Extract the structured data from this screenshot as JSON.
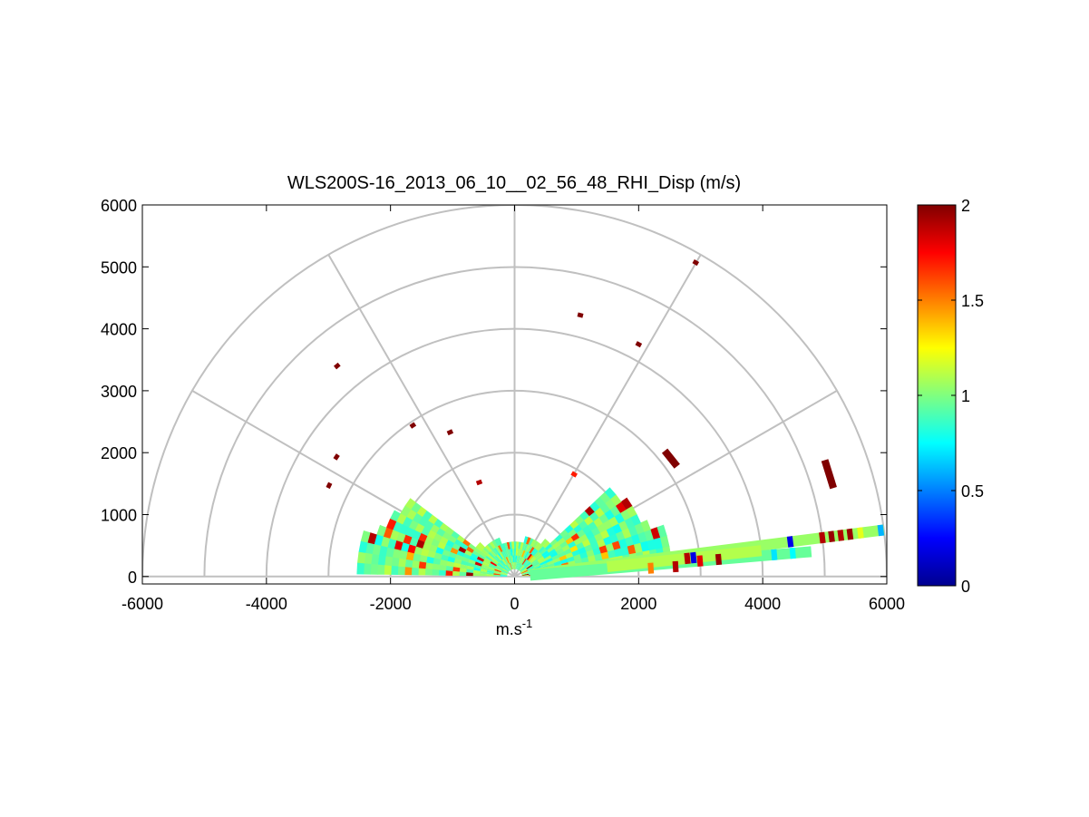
{
  "chart_data": {
    "type": "polar-rhi-scatter",
    "title": "WLS200S-16_2013_06_10__02_56_48_RHI_Disp (m/s)",
    "xlabel": "m.s",
    "xlabel_sup": "-1",
    "xlim": [
      -6000,
      6000
    ],
    "ylim": [
      -120,
      6000
    ],
    "x_ticks": [
      -6000,
      -4000,
      -2000,
      0,
      2000,
      4000,
      6000
    ],
    "x_tick_labels": [
      "-6000",
      "-4000",
      "-2000",
      "0",
      "2000",
      "4000",
      "6000"
    ],
    "y_ticks": [
      0,
      1000,
      2000,
      3000,
      4000,
      5000,
      6000
    ],
    "y_tick_labels": [
      "0",
      "1000",
      "2000",
      "3000",
      "4000",
      "5000",
      "6000"
    ],
    "polar_grid": {
      "range_rings": [
        1000,
        2000,
        3000,
        4000,
        5000,
        6000
      ],
      "spokes_deg": [
        0,
        30,
        60,
        90,
        120,
        150,
        180
      ]
    },
    "colorbar": {
      "colormap": "jet",
      "range": [
        0,
        2
      ],
      "ticks": [
        0,
        0.5,
        1,
        1.5,
        2
      ],
      "tick_labels": [
        "0",
        "0.5",
        "1",
        "1.5",
        "2"
      ]
    },
    "sector": {
      "elevation_deg": [
        3,
        177
      ],
      "range_m": [
        0,
        2450
      ],
      "typical_value": 0.95
    },
    "low_beams": [
      {
        "elevation_deg": 7.2,
        "range_m": [
          250,
          6000
        ],
        "value": 1.05
      },
      {
        "elevation_deg": 4.8,
        "range_m": [
          250,
          4800
        ],
        "value": 0.95
      },
      {
        "elevation_deg": 6.0,
        "range_m": [
          1500,
          4000
        ],
        "value": 1.1
      }
    ],
    "beam_highlights": [
      {
        "elevation_deg": 7.2,
        "range_m": 4480,
        "value": 0.2
      },
      {
        "elevation_deg": 7.2,
        "range_m": 5000,
        "value": 1.9
      },
      {
        "elevation_deg": 7.2,
        "range_m": 5150,
        "value": 1.95
      },
      {
        "elevation_deg": 7.2,
        "range_m": 5300,
        "value": 1.9
      },
      {
        "elevation_deg": 7.2,
        "range_m": 5450,
        "value": 1.95
      },
      {
        "elevation_deg": 7.2,
        "range_m": 5620,
        "value": 1.2
      },
      {
        "elevation_deg": 7.2,
        "range_m": 5950,
        "value": 0.6
      },
      {
        "elevation_deg": 4.8,
        "range_m": 3300,
        "value": 1.95
      },
      {
        "elevation_deg": 4.8,
        "range_m": 3000,
        "value": 1.8
      },
      {
        "elevation_deg": 4.8,
        "range_m": 4200,
        "value": 0.7
      },
      {
        "elevation_deg": 4.8,
        "range_m": 4500,
        "value": 0.75
      },
      {
        "elevation_deg": 6.0,
        "range_m": 2900,
        "value": 0.2
      },
      {
        "elevation_deg": 6.0,
        "range_m": 2800,
        "value": 1.9
      },
      {
        "elevation_deg": 3.5,
        "range_m": 2600,
        "value": 1.9
      },
      {
        "elevation_deg": 3.5,
        "range_m": 2200,
        "value": 1.5
      }
    ],
    "isolated_points": [
      {
        "x": -2990,
        "y": 1470,
        "value": 2
      },
      {
        "x": -2870,
        "y": 1930,
        "value": 2
      },
      {
        "x": -2860,
        "y": 3400,
        "value": 2
      },
      {
        "x": -1640,
        "y": 2440,
        "value": 2
      },
      {
        "x": -1040,
        "y": 2330,
        "value": 2
      },
      {
        "x": -570,
        "y": 1520,
        "value": 1.9
      },
      {
        "x": 960,
        "y": 1650,
        "value": 1.7
      },
      {
        "x": 1060,
        "y": 4220,
        "value": 2
      },
      {
        "x": 2000,
        "y": 3750,
        "value": 2
      },
      {
        "x": 2920,
        "y": 5070,
        "value": 2
      }
    ],
    "segments": [
      {
        "x1": 2420,
        "y1": 2030,
        "x2": 2620,
        "y2": 1780,
        "value": 2
      },
      {
        "x1": 5000,
        "y1": 1880,
        "x2": 5140,
        "y2": 1430,
        "value": 2
      }
    ]
  }
}
